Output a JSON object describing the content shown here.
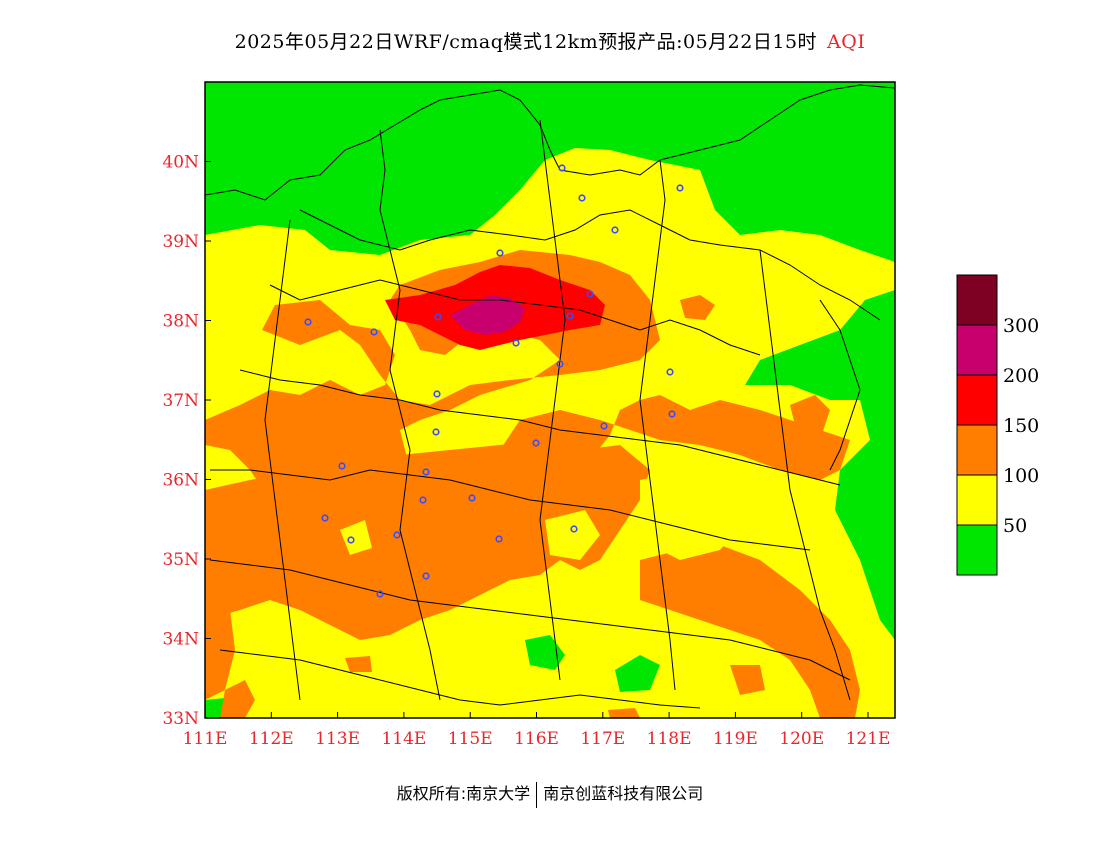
{
  "title": {
    "main": "2025年05月22日WRF/cmaq模式12km预报产品:05月22日15时",
    "suffix": "AQI"
  },
  "axes": {
    "lon_labels": [
      "111E",
      "112E",
      "113E",
      "114E",
      "115E",
      "116E",
      "117E",
      "118E",
      "119E",
      "120E",
      "121E"
    ],
    "lat_labels": [
      "33N",
      "34N",
      "35N",
      "36N",
      "37N",
      "38N",
      "39N",
      "40N"
    ]
  },
  "legend": {
    "levels": [
      {
        "label": "",
        "color": "#00e600"
      },
      {
        "label": "50",
        "color": "#ffff00"
      },
      {
        "label": "100",
        "color": "#ff7e00"
      },
      {
        "label": "150",
        "color": "#ff0000"
      },
      {
        "label": "200",
        "color": "#c8006e"
      },
      {
        "label": "300",
        "color": "#7e0023"
      }
    ]
  },
  "footer": {
    "left": "版权所有:南京大学",
    "right": "南京创蓝科技有限公司"
  },
  "colors": {
    "good": "#00e600",
    "moderate": "#ffff00",
    "sensitive": "#ff7e00",
    "unhealthy": "#ff0000",
    "very_unhealthy": "#c8006e",
    "hazardous": "#7e0023",
    "station_marker": "#3a4bff"
  }
}
